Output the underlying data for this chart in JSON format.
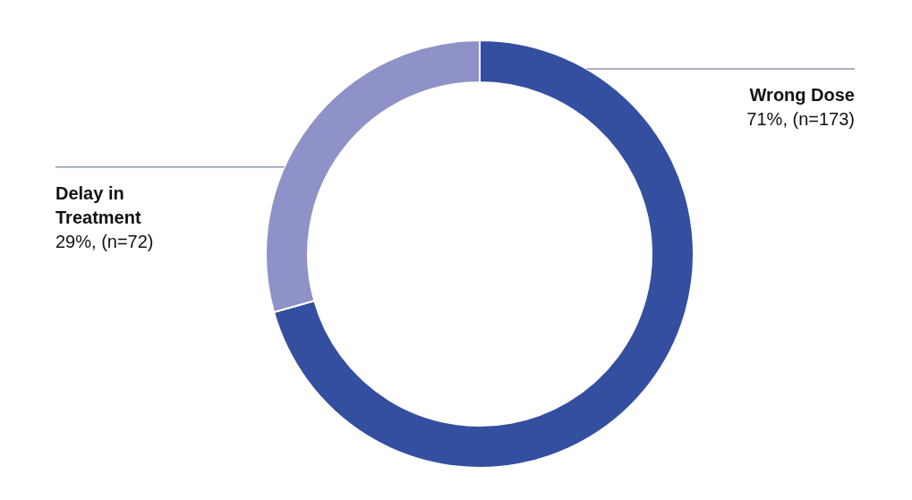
{
  "chart_data": {
    "type": "donut",
    "categories": [
      "Wrong Dose",
      "Delay in Treatment"
    ],
    "values": [
      173,
      72
    ],
    "value_labels": [
      "71%, (n=173)",
      "29%, (n=72)"
    ],
    "colors": [
      "#344ea0",
      "#8f92c8"
    ]
  }
}
